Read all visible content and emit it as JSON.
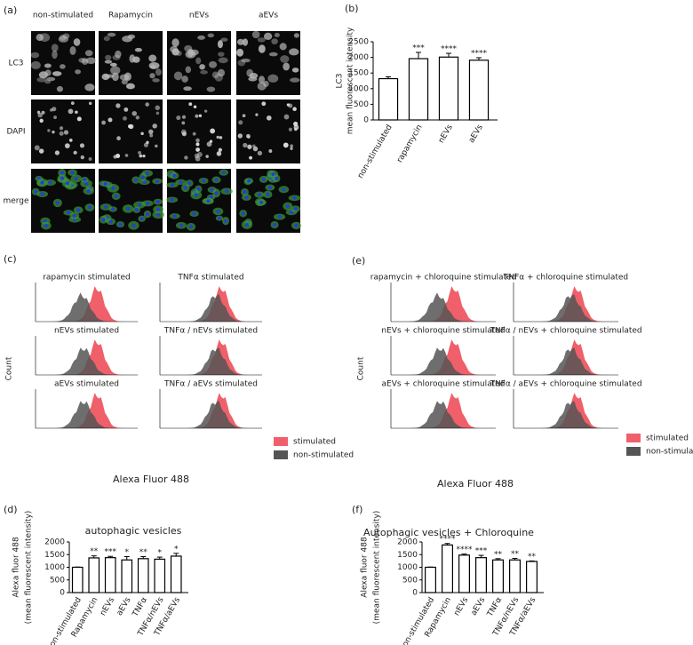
{
  "chart_data": [
    {
      "type": "image-grid",
      "panel": "(a)",
      "columns": [
        "non-stimulated",
        "Rapamycin",
        "nEVs",
        "aEVs"
      ],
      "rows": [
        "LC3",
        "DAPI",
        "merge"
      ]
    },
    {
      "type": "bar",
      "panel": "(b)",
      "ylabel": [
        "LC3",
        "mean fluorescent intensity"
      ],
      "categories": [
        "non-stimulated",
        "rapamycin",
        "nEVs",
        "aEVs"
      ],
      "values": [
        1320,
        1960,
        2010,
        1910
      ],
      "errors": [
        60,
        200,
        120,
        80
      ],
      "annotations": [
        null,
        "***",
        "****",
        "****"
      ],
      "ylim": [
        0,
        2500
      ],
      "yticks": [
        0,
        500,
        1000,
        1500,
        2000,
        2500
      ]
    },
    {
      "type": "histogram-grid",
      "panel": "(c)",
      "titles": [
        "rapamycin stimulated",
        "TNFα stimulated",
        "nEVs stimulated",
        "TNFα / nEVs stimulated",
        "aEVs stimulated",
        "TNFα / aEVs stimulated"
      ],
      "xlabel": "Alexa Fluor 488",
      "ylabel": "Count",
      "series": [
        {
          "name": "stimulated",
          "color": "#f0606a"
        },
        {
          "name": "non-stimulated",
          "color": "#555555"
        }
      ]
    },
    {
      "type": "histogram-grid",
      "panel": "(e)",
      "titles": [
        "rapamycin + chloroquine stimulated",
        "TNFα + chloroquine stimulated",
        "nEVs + chloroquine stimulated",
        "TNFα / nEVs + chloroquine stimulated",
        "aEVs + chloroquine stimulated",
        "TNFα / aEVs + chloroquine stimulated"
      ],
      "xlabel": "Alexa Fluor 488",
      "ylabel": "Count",
      "series": [
        {
          "name": "stimulated",
          "color": "#f0606a"
        },
        {
          "name": "non-stimulated",
          "color": "#555555"
        }
      ]
    },
    {
      "type": "bar",
      "panel": "(d)",
      "title": "autophagic vesicles",
      "ylabel": [
        "Alexa fluor 488",
        "(mean fluorescent intensity)"
      ],
      "categories": [
        "non-stimulated",
        "Rapamycin",
        "nEVs",
        "aEVs",
        "TNFα",
        "TNFα/nEVs",
        "TNFα/aEVs"
      ],
      "values": [
        1000,
        1370,
        1380,
        1290,
        1340,
        1320,
        1440
      ],
      "errors": [
        10,
        80,
        50,
        130,
        80,
        80,
        110
      ],
      "annotations": [
        null,
        "**",
        "***",
        "*",
        "**",
        "*",
        "*"
      ],
      "ylim": [
        0,
        2000
      ],
      "yticks": [
        0,
        500,
        1000,
        1500,
        2000
      ]
    },
    {
      "type": "bar",
      "panel": "(f)",
      "title": "Autophagic vesicles + Chloroquine",
      "ylabel": [
        "Alexa fluor 488",
        "(mean fluorescent intensity)"
      ],
      "categories": [
        "non-stimulated",
        "Rapamycin",
        "nEVs",
        "aEVs",
        "TNFα",
        "TNFα/nEVs",
        "TNFα/aEVs"
      ],
      "values": [
        1000,
        1880,
        1480,
        1380,
        1290,
        1290,
        1230
      ],
      "errors": [
        10,
        60,
        40,
        90,
        50,
        60,
        20
      ],
      "annotations": [
        null,
        "****",
        "****",
        "***",
        "**",
        "**",
        "**"
      ],
      "ylim": [
        0,
        2000
      ],
      "yticks": [
        0,
        500,
        1000,
        1500,
        2000
      ]
    }
  ]
}
